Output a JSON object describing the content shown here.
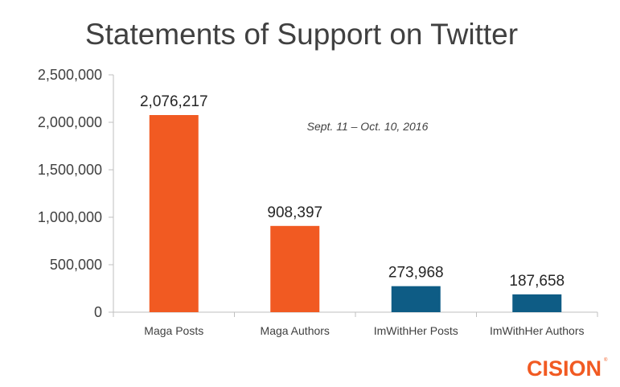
{
  "chart_data": {
    "type": "bar",
    "title": "Statements of Support on Twitter",
    "annotation": "Sept. 11 – Oct. 10, 2016",
    "categories": [
      "Maga Posts",
      "Maga Authors",
      "ImWithHer Posts",
      "ImWithHer Authors"
    ],
    "values": [
      2076217,
      908397,
      273968,
      187658
    ],
    "data_labels": [
      "2,076,217",
      "908,397",
      "273,968",
      "187,658"
    ],
    "bar_colors": [
      "#f15a22",
      "#f15a22",
      "#0e5c85",
      "#0e5c85"
    ],
    "ylim": [
      0,
      2500000
    ],
    "yticks": [
      0,
      500000,
      1000000,
      1500000,
      2000000,
      2500000
    ],
    "ytick_labels": [
      "0",
      "500,000",
      "1,000,000",
      "1,500,000",
      "2,000,000",
      "2,500,000"
    ],
    "xlabel": "",
    "ylabel": "",
    "grid": false,
    "legend": false
  },
  "logo": {
    "text": "CISION",
    "tm": "®",
    "color": "#f15a22"
  }
}
